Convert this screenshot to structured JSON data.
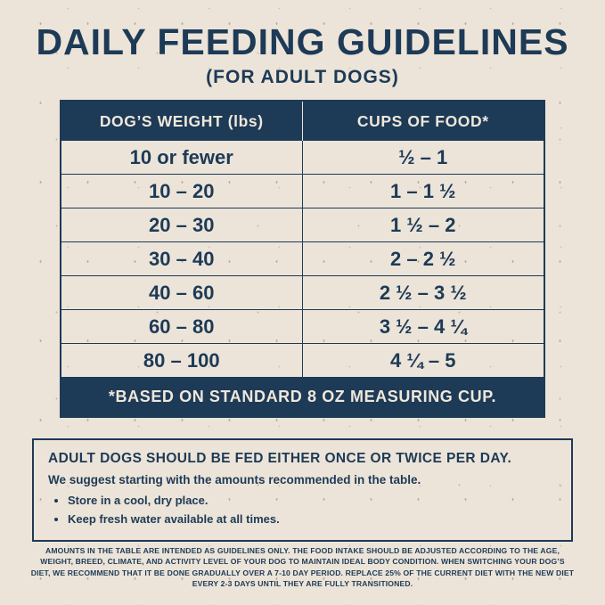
{
  "colors": {
    "navy": "#1d3a57",
    "cream": "#ece4d8"
  },
  "header": {
    "title": "DAILY FEEDING GUIDELINES",
    "subtitle": "(FOR ADULT DOGS)"
  },
  "table": {
    "columns": [
      "DOG’S WEIGHT (lbs)",
      "CUPS OF FOOD*"
    ],
    "rows": [
      {
        "weight": "10 or fewer",
        "cups": "½ – 1"
      },
      {
        "weight": "10 – 20",
        "cups": "1 – 1 ½"
      },
      {
        "weight": "20 – 30",
        "cups": "1 ½ – 2"
      },
      {
        "weight": "30 – 40",
        "cups": "2 – 2 ½"
      },
      {
        "weight": "40 – 60",
        "cups": "2 ½ – 3 ½"
      },
      {
        "weight": "60 – 80",
        "cups": "3 ½ – 4 ¼"
      },
      {
        "weight": "80 – 100",
        "cups": "4 ¼ – 5"
      }
    ],
    "footnote": "*BASED ON STANDARD 8 OZ MEASURING CUP."
  },
  "info_box": {
    "heading": "ADULT DOGS SHOULD BE FED EITHER ONCE OR TWICE PER DAY.",
    "subheading": "We suggest starting with the amounts recommended in the table.",
    "bullets": [
      "Store in a cool, dry place.",
      "Keep fresh water available at all times."
    ]
  },
  "fine_print": "AMOUNTS IN THE TABLE ARE INTENDED AS GUIDELINES ONLY. THE FOOD INTAKE SHOULD BE ADJUSTED ACCORDING TO THE AGE, WEIGHT, BREED, CLIMATE, AND ACTIVITY LEVEL OF YOUR DOG TO MAINTAIN IDEAL BODY CONDITION. WHEN SWITCHING YOUR DOG’S DIET, WE RECOMMEND THAT IT BE DONE GRADUALLY OVER A 7-10 DAY PERIOD. REPLACE 25% OF THE CURRENT DIET WITH THE NEW DIET EVERY 2-3 DAYS UNTIL THEY ARE FULLY TRANSITIONED."
}
